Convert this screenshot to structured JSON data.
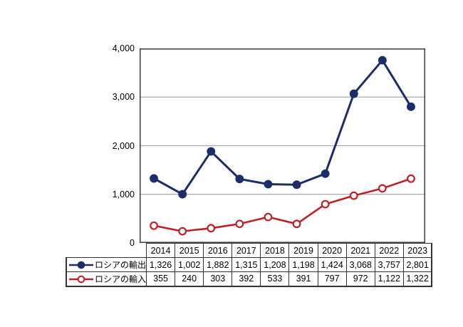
{
  "chart_data": {
    "type": "line",
    "title": "",
    "xlabel": "",
    "ylabel": "",
    "categories": [
      "2014",
      "2015",
      "2016",
      "2017",
      "2018",
      "2019",
      "2020",
      "2021",
      "2022",
      "2023"
    ],
    "series": [
      {
        "name": "ロシアの輸出",
        "values": [
          1326,
          1002,
          1882,
          1315,
          1208,
          1198,
          1424,
          3068,
          3757,
          2801
        ],
        "display_values": [
          "1,326",
          "1,002",
          "1,882",
          "1,315",
          "1,208",
          "1,198",
          "1,424",
          "3,068",
          "3,757",
          "2,801"
        ],
        "color": "#1b2e69",
        "marker": "filled-circle"
      },
      {
        "name": "ロシアの輸入",
        "values": [
          355,
          240,
          303,
          392,
          533,
          391,
          797,
          972,
          1122,
          1322
        ],
        "display_values": [
          "355",
          "240",
          "303",
          "392",
          "533",
          "391",
          "797",
          "972",
          "1,122",
          "1,322"
        ],
        "color": "#be2026",
        "marker": "open-circle"
      }
    ],
    "ylim": [
      0,
      4000
    ],
    "yticks": [
      {
        "value": 0,
        "label": "0"
      },
      {
        "value": 1000,
        "label": "1,000"
      },
      {
        "value": 2000,
        "label": "2,000"
      },
      {
        "value": 3000,
        "label": "3,000"
      },
      {
        "value": 4000,
        "label": "4,000"
      }
    ],
    "grid": true,
    "legend_position": "table-left"
  },
  "colors": {
    "background": "#ffffff",
    "gridline": "#a9a9a9",
    "frame": "#3c3c3c",
    "table_border": "#333333",
    "text": "#000000",
    "export_series": "#1b2e69",
    "import_series": "#be2026"
  }
}
